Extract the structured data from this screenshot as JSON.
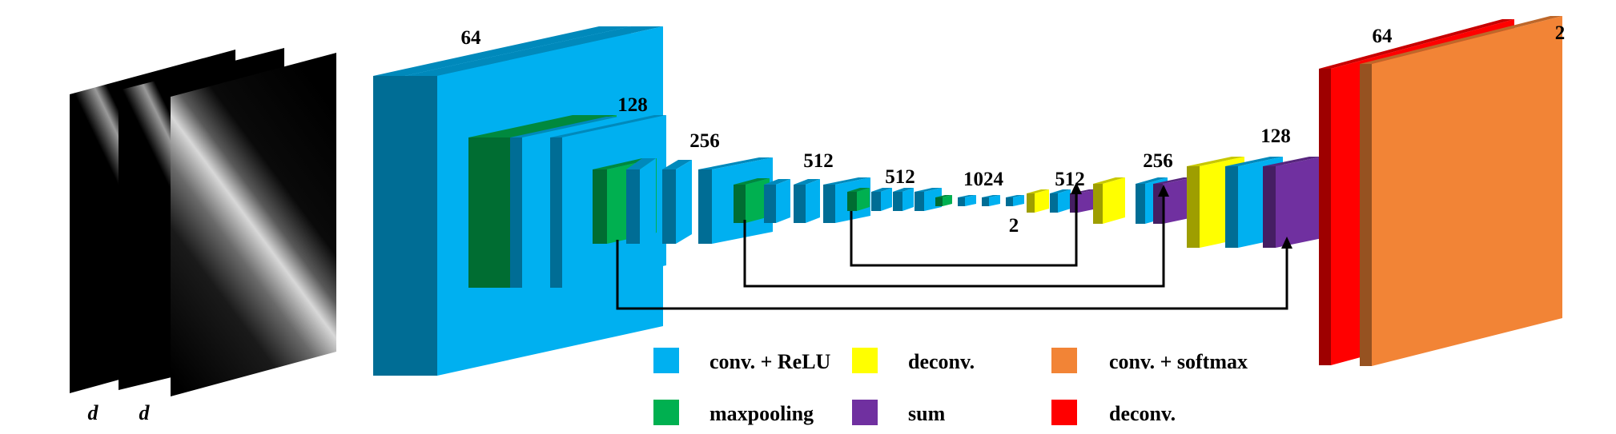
{
  "input_slices": {
    "labels": [
      "d",
      "d"
    ]
  },
  "channel_labels": {
    "enc1": "64",
    "enc2": "128",
    "enc3": "256",
    "enc4": "512",
    "enc5": "512",
    "bottleneck": "1024",
    "classes_mid": "2",
    "dec4": "512",
    "dec3": "256",
    "dec2": "128",
    "dec1": "64",
    "out": "2"
  },
  "legend": [
    {
      "label": "conv. + ReLU",
      "color": "#00B0F0"
    },
    {
      "label": "maxpooling",
      "color": "#00B050"
    },
    {
      "label": "deconv.",
      "color": "#FFFF00"
    },
    {
      "label": "sum",
      "color": "#7030A0"
    },
    {
      "label": "conv. + softmax",
      "color": "#F28436"
    },
    {
      "label": "deconv.",
      "color": "#FF0000"
    }
  ],
  "colors": {
    "conv_relu": "#00B0F0",
    "maxpooling": "#00B050",
    "deconv_yellow": "#FFFF00",
    "sum": "#7030A0",
    "softmax": "#F28436",
    "deconv_red": "#FF0000"
  }
}
